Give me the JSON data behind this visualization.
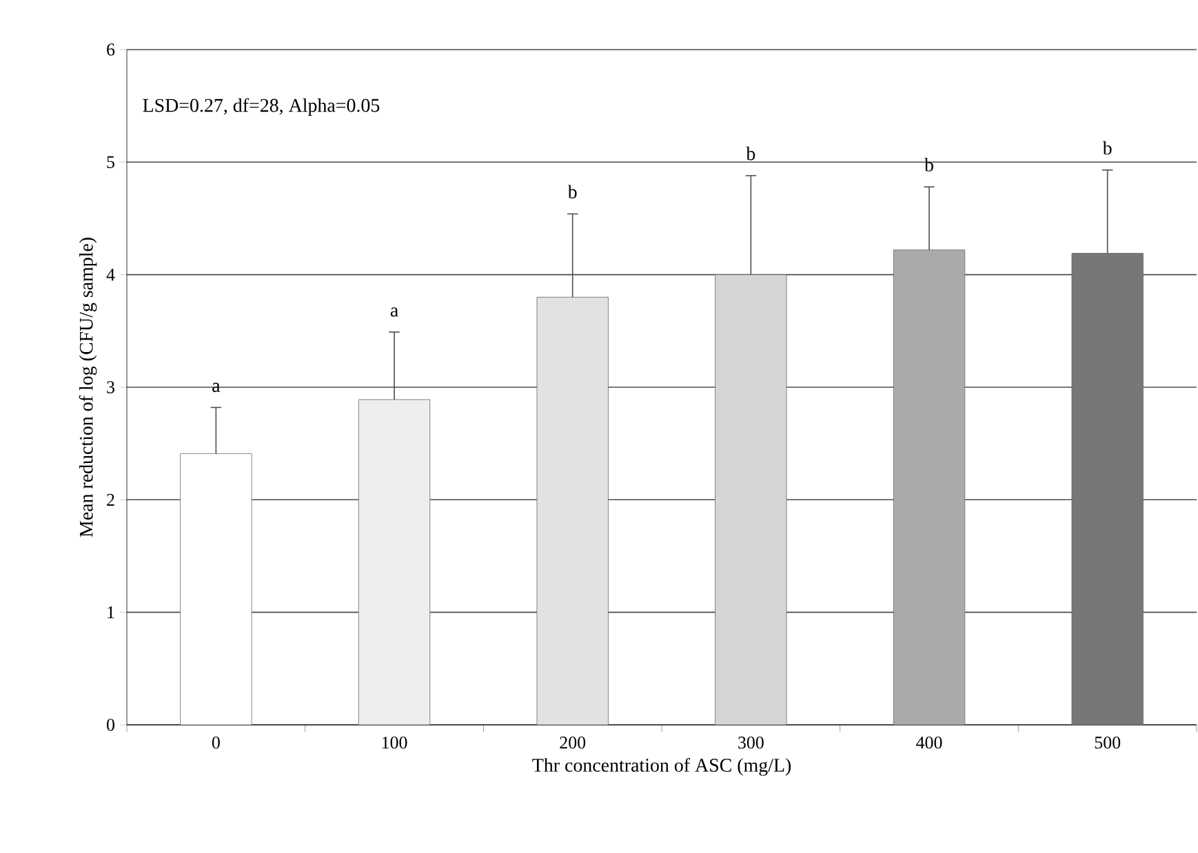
{
  "chart_data": {
    "type": "bar",
    "xlabel": "Thr concentration of ASC (mg/L)",
    "ylabel": "Mean reduction of log (CFU/g sample)",
    "categories": [
      "0",
      "100",
      "200",
      "300",
      "400",
      "500"
    ],
    "values": [
      2.41,
      2.89,
      3.8,
      4.0,
      4.22,
      4.19
    ],
    "errors": [
      [
        2.41,
        2.82
      ],
      [
        2.89,
        3.49
      ],
      [
        3.8,
        4.54
      ],
      [
        4.0,
        4.88
      ],
      [
        4.22,
        4.78
      ],
      [
        4.19,
        4.93
      ]
    ],
    "colors": [
      "#ffffff",
      "#eeeeee",
      "#e2e2e2",
      "#d6d6d6",
      "#aaaaaa",
      "#777777"
    ],
    "ylim": [
      0,
      6
    ],
    "yticks": [
      0,
      1,
      2,
      3,
      4,
      5,
      6
    ],
    "grid": "y",
    "annotations": [
      "LSD=0.27, df=28, Alpha=0.05",
      "a",
      "a",
      "b",
      "b",
      "b",
      "b"
    ]
  }
}
